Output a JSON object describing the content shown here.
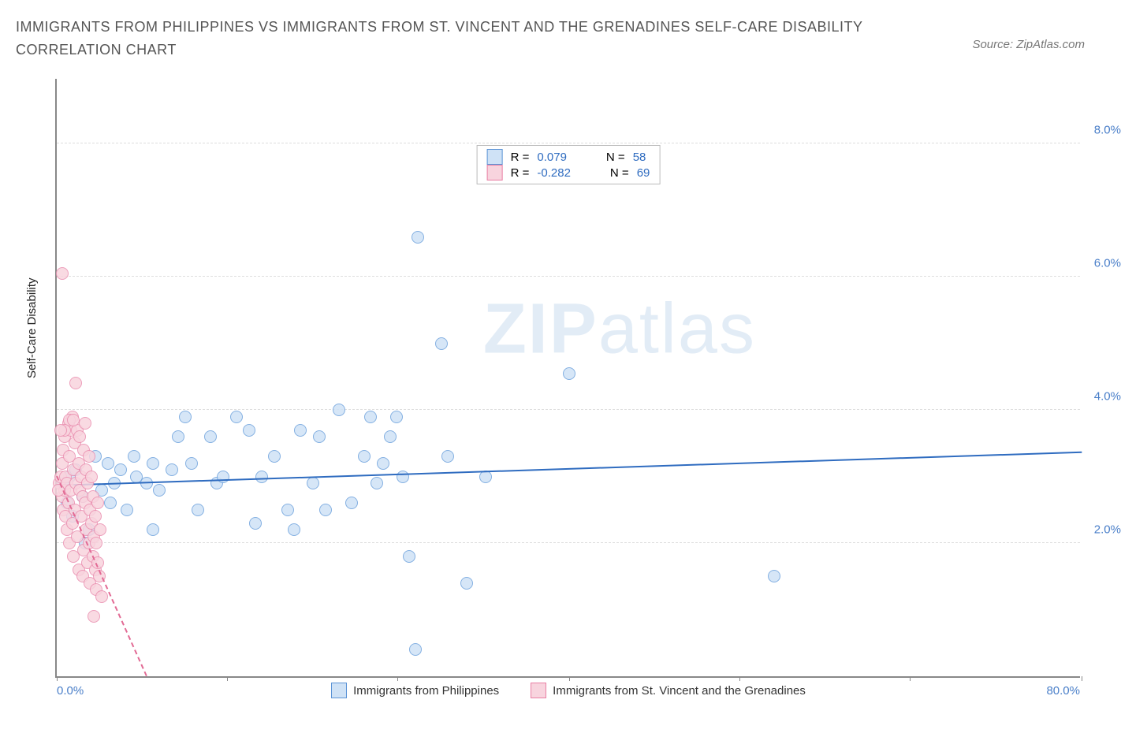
{
  "title": "IMMIGRANTS FROM PHILIPPINES VS IMMIGRANTS FROM ST. VINCENT AND THE GRENADINES SELF-CARE DISABILITY CORRELATION CHART",
  "source_label": "Source: ZipAtlas.com",
  "watermark": {
    "bold": "ZIP",
    "light": "atlas",
    "color": "#e2ecf6"
  },
  "yaxis": {
    "title": "Self-Care Disability",
    "min": 0.0,
    "max": 9.0,
    "ticks": [
      2.0,
      4.0,
      6.0,
      8.0
    ],
    "tick_labels": [
      "2.0%",
      "4.0%",
      "6.0%",
      "8.0%"
    ],
    "tick_color": "#4a7fc9",
    "grid_color": "#dddddd"
  },
  "xaxis": {
    "min": 0.0,
    "max": 80.0,
    "left_label": "0.0%",
    "right_label": "80.0%",
    "label_color": "#4a7fc9",
    "tick_positions": [
      0,
      13.3,
      26.6,
      40,
      53.3,
      66.6,
      80
    ]
  },
  "stats_legend": {
    "rows": [
      {
        "swatch_fill": "#cfe2f6",
        "swatch_border": "#5b93d6",
        "r_label": "R =",
        "r_value": "0.079",
        "n_label": "N =",
        "n_value": "58",
        "value_color": "#2f6cc0"
      },
      {
        "swatch_fill": "#f8d4de",
        "swatch_border": "#e97fa4",
        "r_label": "R =",
        "r_value": "-0.282",
        "n_label": "N =",
        "n_value": "69",
        "value_color": "#2f6cc0"
      }
    ]
  },
  "bottom_legend": [
    {
      "swatch_fill": "#cfe2f6",
      "swatch_border": "#5b93d6",
      "label": "Immigrants from Philippines"
    },
    {
      "swatch_fill": "#f8d4de",
      "swatch_border": "#e97fa4",
      "label": "Immigrants from St. Vincent and the Grenadines"
    }
  ],
  "series": [
    {
      "name": "philippines",
      "marker_fill": "#cfe2f6",
      "marker_border": "#6fa3dd",
      "marker_radius": 8,
      "marker_opacity": 0.85,
      "trend": {
        "color": "#2f6cc0",
        "width": 2,
        "dash": "solid",
        "x1": 0,
        "y1": 2.85,
        "x2": 80,
        "y2": 3.35
      },
      "points": [
        [
          0.5,
          2.9
        ],
        [
          0.8,
          2.6
        ],
        [
          1.0,
          3.0
        ],
        [
          1.2,
          2.4
        ],
        [
          1.5,
          3.1
        ],
        [
          2.0,
          2.7
        ],
        [
          2.2,
          2.0
        ],
        [
          3.5,
          2.8
        ],
        [
          4.0,
          3.2
        ],
        [
          4.5,
          2.9
        ],
        [
          5.0,
          3.1
        ],
        [
          5.5,
          2.5
        ],
        [
          6.0,
          3.3
        ],
        [
          6.2,
          3.0
        ],
        [
          7.0,
          2.9
        ],
        [
          7.5,
          3.2
        ],
        [
          8.0,
          2.8
        ],
        [
          9.0,
          3.1
        ],
        [
          10.0,
          3.9
        ],
        [
          10.5,
          3.2
        ],
        [
          11.0,
          2.5
        ],
        [
          12.0,
          3.6
        ],
        [
          12.5,
          2.9
        ],
        [
          13.0,
          3.0
        ],
        [
          14.0,
          3.9
        ],
        [
          15.0,
          3.7
        ],
        [
          15.5,
          2.3
        ],
        [
          16.0,
          3.0
        ],
        [
          17.0,
          3.3
        ],
        [
          18.0,
          2.5
        ],
        [
          18.5,
          2.2
        ],
        [
          19.0,
          3.7
        ],
        [
          20.0,
          2.9
        ],
        [
          20.5,
          3.6
        ],
        [
          21.0,
          2.5
        ],
        [
          22.0,
          4.0
        ],
        [
          23.0,
          2.6
        ],
        [
          24.0,
          3.3
        ],
        [
          24.5,
          3.9
        ],
        [
          25.0,
          2.9
        ],
        [
          25.5,
          3.2
        ],
        [
          26.0,
          3.6
        ],
        [
          26.5,
          3.9
        ],
        [
          27.0,
          3.0
        ],
        [
          27.5,
          1.8
        ],
        [
          28.0,
          0.4
        ],
        [
          28.2,
          6.6
        ],
        [
          30.0,
          5.0
        ],
        [
          30.5,
          3.3
        ],
        [
          32.0,
          1.4
        ],
        [
          33.5,
          3.0
        ],
        [
          40.0,
          4.55
        ],
        [
          56.0,
          1.5
        ],
        [
          7.5,
          2.2
        ],
        [
          9.5,
          3.6
        ],
        [
          4.2,
          2.6
        ],
        [
          3.0,
          3.3
        ],
        [
          2.5,
          2.2
        ]
      ]
    },
    {
      "name": "st_vincent",
      "marker_fill": "#f8d4de",
      "marker_border": "#ea8fb0",
      "marker_radius": 8,
      "marker_opacity": 0.85,
      "trend": {
        "color": "#e26a94",
        "width": 2,
        "dash": "6,5",
        "x1": 0,
        "y1": 3.0,
        "x2": 7,
        "y2": 0.0
      },
      "points": [
        [
          0.2,
          2.9
        ],
        [
          0.3,
          3.0
        ],
        [
          0.4,
          2.7
        ],
        [
          0.4,
          3.2
        ],
        [
          0.5,
          2.5
        ],
        [
          0.5,
          3.4
        ],
        [
          0.6,
          2.8
        ],
        [
          0.6,
          3.6
        ],
        [
          0.7,
          2.4
        ],
        [
          0.7,
          3.0
        ],
        [
          0.8,
          2.2
        ],
        [
          0.8,
          2.9
        ],
        [
          0.9,
          3.8
        ],
        [
          0.9,
          2.6
        ],
        [
          1.0,
          3.3
        ],
        [
          1.0,
          2.0
        ],
        [
          1.1,
          3.7
        ],
        [
          1.1,
          2.8
        ],
        [
          1.2,
          3.9
        ],
        [
          1.2,
          2.3
        ],
        [
          1.3,
          3.1
        ],
        [
          1.3,
          1.8
        ],
        [
          1.4,
          3.5
        ],
        [
          1.4,
          2.5
        ],
        [
          1.5,
          4.4
        ],
        [
          1.5,
          2.9
        ],
        [
          1.6,
          3.7
        ],
        [
          1.6,
          2.1
        ],
        [
          1.7,
          3.2
        ],
        [
          1.7,
          1.6
        ],
        [
          1.8,
          2.8
        ],
        [
          1.8,
          3.6
        ],
        [
          1.9,
          2.4
        ],
        [
          1.9,
          3.0
        ],
        [
          2.0,
          1.5
        ],
        [
          2.0,
          2.7
        ],
        [
          2.1,
          3.4
        ],
        [
          2.1,
          1.9
        ],
        [
          2.2,
          2.6
        ],
        [
          2.2,
          3.8
        ],
        [
          2.3,
          2.2
        ],
        [
          2.3,
          3.1
        ],
        [
          2.4,
          1.7
        ],
        [
          2.4,
          2.9
        ],
        [
          2.5,
          3.3
        ],
        [
          2.5,
          2.0
        ],
        [
          2.6,
          2.5
        ],
        [
          2.6,
          1.4
        ],
        [
          2.7,
          3.0
        ],
        [
          2.7,
          2.3
        ],
        [
          2.8,
          1.8
        ],
        [
          2.8,
          2.7
        ],
        [
          2.9,
          0.9
        ],
        [
          2.9,
          2.1
        ],
        [
          3.0,
          1.6
        ],
        [
          3.0,
          2.4
        ],
        [
          3.1,
          1.3
        ],
        [
          3.1,
          2.0
        ],
        [
          3.2,
          1.7
        ],
        [
          3.2,
          2.6
        ],
        [
          3.3,
          1.5
        ],
        [
          3.4,
          2.2
        ],
        [
          3.5,
          1.2
        ],
        [
          0.4,
          6.05
        ],
        [
          1.0,
          3.85
        ],
        [
          1.3,
          3.85
        ],
        [
          0.6,
          3.7
        ],
        [
          0.3,
          3.7
        ],
        [
          0.15,
          2.8
        ]
      ]
    }
  ],
  "colors": {
    "axis": "#888888",
    "title": "#555555",
    "text": "#333333"
  }
}
